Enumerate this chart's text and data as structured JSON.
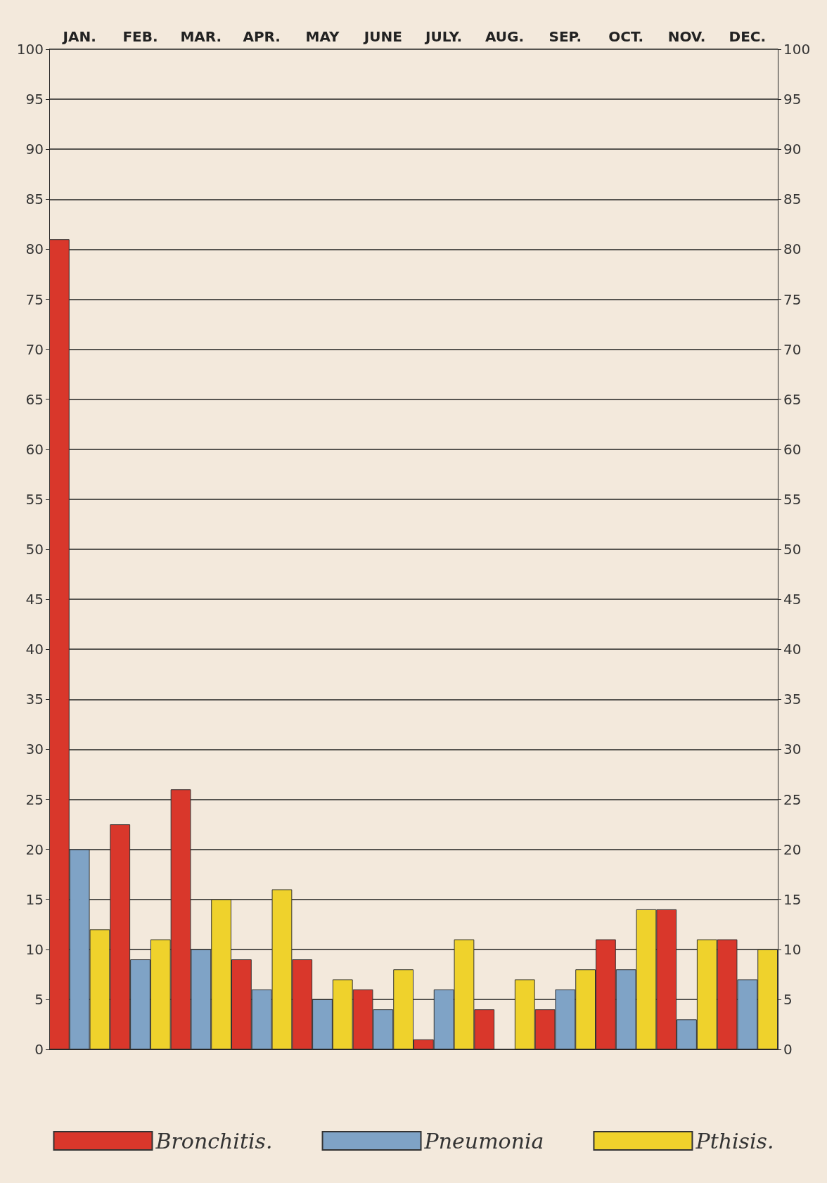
{
  "chart_data": {
    "type": "bar",
    "categories": [
      "JAN.",
      "FEB.",
      "MAR.",
      "APR.",
      "MAY",
      "JUNE",
      "JULY.",
      "AUG.",
      "SEP.",
      "OCT.",
      "NOV.",
      "DEC."
    ],
    "series": [
      {
        "name": "Bronchitis.",
        "color": "#d9372b",
        "values": [
          81,
          22.5,
          26,
          9,
          9,
          6,
          1,
          4,
          4,
          11,
          14,
          11
        ]
      },
      {
        "name": "Pneumonia",
        "color": "#7fa3c6",
        "values": [
          20,
          9,
          10,
          6,
          5,
          4,
          6,
          null,
          6,
          8,
          3,
          7
        ]
      },
      {
        "name": "Pthisis.",
        "color": "#efd22c",
        "values": [
          12,
          11,
          15,
          16,
          7,
          8,
          11,
          7,
          8,
          14,
          11,
          10
        ]
      }
    ],
    "ylim": [
      0,
      100
    ],
    "yticks": [
      0,
      5,
      10,
      15,
      20,
      25,
      30,
      35,
      40,
      45,
      50,
      55,
      60,
      65,
      70,
      75,
      80,
      85,
      90,
      95,
      100
    ],
    "y2lim": [
      0,
      100
    ],
    "y2ticks": [
      0,
      5,
      10,
      15,
      20,
      25,
      30,
      35,
      40,
      45,
      50,
      55,
      60,
      65,
      70,
      75,
      80,
      85,
      90,
      95,
      100
    ],
    "grid": "y",
    "legend": "bottom"
  }
}
